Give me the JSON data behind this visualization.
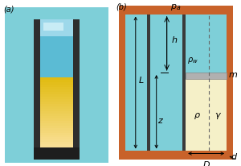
{
  "fig_width": 3.0,
  "fig_height": 2.07,
  "dpi": 100,
  "bg_color": "#ffffff",
  "panel_b": {
    "label_a": "(a)",
    "label_b": "(b)",
    "sea_color": "#7ecfd8",
    "water_color": "#7ecfd8",
    "air_color": "#f5f0c8",
    "wall_color": "#c8622a",
    "tube_color": "#3a3a3a",
    "piston_color": "#b0b0b0",
    "dashed_color": "#777777",
    "pa_label": "p_a",
    "h_label": "h",
    "L_label": "L",
    "z_label": "z",
    "rho_w_label": "\\rho_w",
    "m_label": "m",
    "rho_label": "\\rho",
    "gamma_label": "\\gamma",
    "D_label": "D",
    "d_label": "d"
  }
}
